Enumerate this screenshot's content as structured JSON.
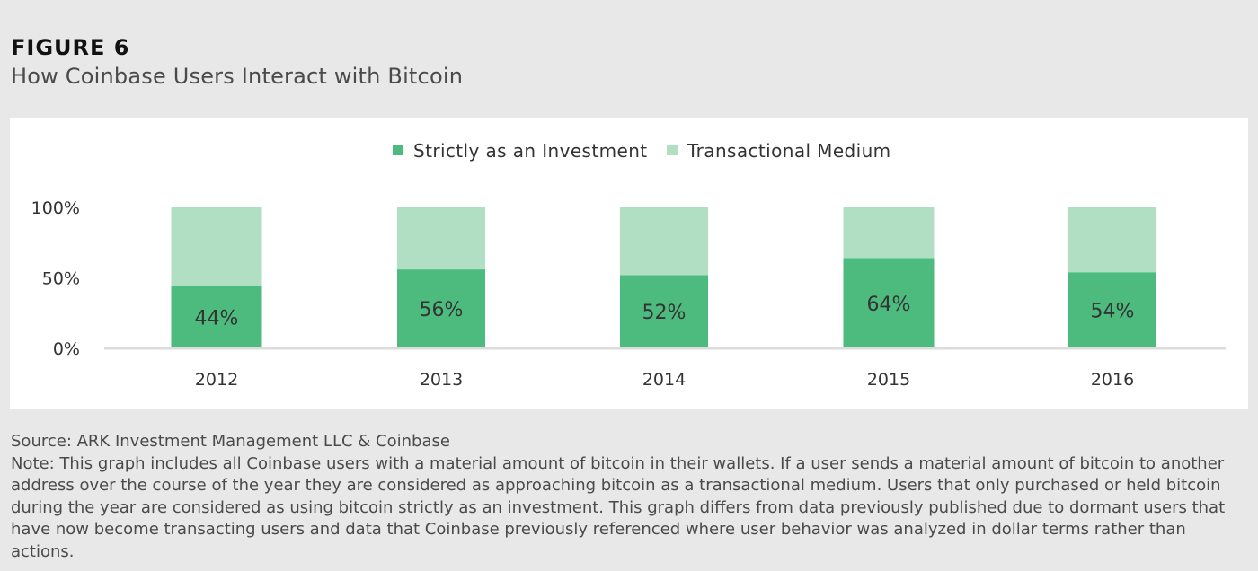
{
  "header": {
    "figure_label": "FIGURE 6",
    "title": "How Coinbase Users Interact with Bitcoin"
  },
  "colors": {
    "investment": "#4dbb7e",
    "transactional": "#b0dfc3",
    "axis_line": "#dcdcdc",
    "text": "#333333"
  },
  "chart_data": {
    "type": "bar",
    "stacked": true,
    "categories": [
      "2012",
      "2013",
      "2014",
      "2015",
      "2016"
    ],
    "series": [
      {
        "name": "Strictly as an Investment",
        "values": [
          44,
          56,
          52,
          64,
          54
        ],
        "labels": [
          "44%",
          "56%",
          "52%",
          "64%",
          "54%"
        ]
      },
      {
        "name": "Transactional Medium",
        "values": [
          56,
          44,
          48,
          36,
          46
        ]
      }
    ],
    "y_ticks": [
      "0%",
      "50%",
      "100%"
    ],
    "ylim": [
      0,
      100
    ],
    "legend_position": "top-center",
    "grid": false
  },
  "footer": {
    "source": "Source: ARK Investment Management LLC & Coinbase",
    "note": "Note: This graph includes all Coinbase users with a material amount of bitcoin in their wallets. If a user sends a material amount of bitcoin to another address over the course of the year they are considered as approaching bitcoin as a transactional medium. Users that only purchased or held bitcoin during the year are considered as using bitcoin strictly as an investment. This graph differs from data previously published due to dormant users that have now become transacting users and data that Coinbase previously referenced where user behavior was analyzed in dollar terms rather than actions."
  }
}
